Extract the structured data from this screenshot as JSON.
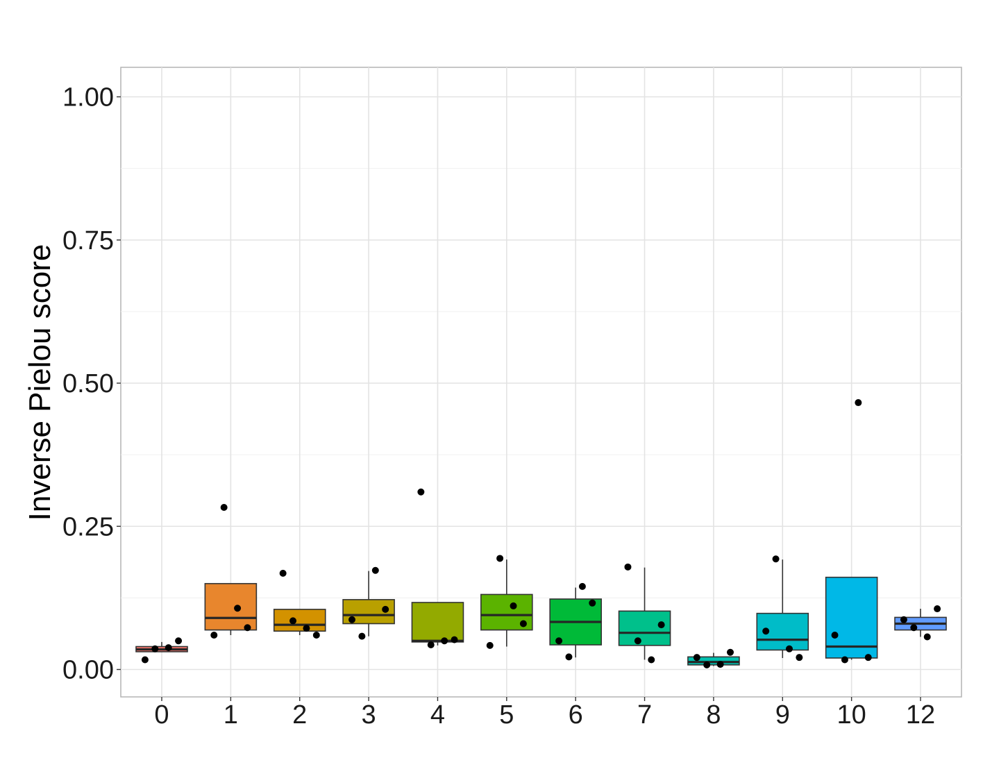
{
  "chart_data": {
    "type": "box",
    "xlabel": "",
    "ylabel": "Inverse Pielou score",
    "ylim": [
      -0.05,
      1.05
    ],
    "yticks": [
      "0.00",
      "0.25",
      "0.50",
      "0.75",
      "1.00"
    ],
    "ytick_values": [
      0,
      0.25,
      0.5,
      0.75,
      1.0
    ],
    "grid": true,
    "categories": [
      "0",
      "1",
      "2",
      "3",
      "4",
      "5",
      "6",
      "7",
      "8",
      "9",
      "10",
      "12"
    ],
    "boxes": [
      {
        "category": "0",
        "color": "#F8766D",
        "q1": 0.031,
        "median": 0.035,
        "q3": 0.04,
        "whisker_low": 0.031,
        "whisker_high": 0.048,
        "points": [
          0.017,
          0.036,
          0.038,
          0.05
        ]
      },
      {
        "category": "1",
        "color": "#E8862D",
        "q1": 0.069,
        "median": 0.09,
        "q3": 0.15,
        "whisker_low": 0.06,
        "whisker_high": 0.15,
        "points": [
          0.283,
          0.107,
          0.073,
          0.06
        ]
      },
      {
        "category": "2",
        "color": "#D39200",
        "q1": 0.067,
        "median": 0.078,
        "q3": 0.105,
        "whisker_low": 0.06,
        "whisker_high": 0.105,
        "points": [
          0.072,
          0.06,
          0.168,
          0.085
        ]
      },
      {
        "category": "3",
        "color": "#B9A000",
        "q1": 0.08,
        "median": 0.095,
        "q3": 0.122,
        "whisker_low": 0.058,
        "whisker_high": 0.172,
        "points": [
          0.105,
          0.087,
          0.058,
          0.173
        ]
      },
      {
        "category": "4",
        "color": "#93AA00",
        "q1": 0.048,
        "median": 0.05,
        "q3": 0.117,
        "whisker_low": 0.042,
        "whisker_high": 0.117,
        "points": [
          0.31,
          0.043,
          0.05,
          0.052
        ]
      },
      {
        "category": "5",
        "color": "#5BB300",
        "q1": 0.069,
        "median": 0.095,
        "q3": 0.131,
        "whisker_low": 0.04,
        "whisker_high": 0.192,
        "points": [
          0.194,
          0.111,
          0.08,
          0.042
        ]
      },
      {
        "category": "6",
        "color": "#00BA38",
        "q1": 0.043,
        "median": 0.083,
        "q3": 0.123,
        "whisker_low": 0.021,
        "whisker_high": 0.143,
        "points": [
          0.145,
          0.116,
          0.05,
          0.022
        ]
      },
      {
        "category": "7",
        "color": "#00C08B",
        "q1": 0.042,
        "median": 0.064,
        "q3": 0.102,
        "whisker_low": 0.017,
        "whisker_high": 0.178,
        "points": [
          0.078,
          0.179,
          0.05,
          0.017
        ]
      },
      {
        "category": "8",
        "color": "#00BFAE",
        "q1": 0.008,
        "median": 0.013,
        "q3": 0.022,
        "whisker_low": 0.006,
        "whisker_high": 0.029,
        "points": [
          0.021,
          0.008,
          0.009,
          0.03
        ]
      },
      {
        "category": "9",
        "color": "#00BCC8",
        "q1": 0.034,
        "median": 0.052,
        "q3": 0.098,
        "whisker_low": 0.02,
        "whisker_high": 0.192,
        "points": [
          0.193,
          0.036,
          0.021,
          0.067
        ]
      },
      {
        "category": "10",
        "color": "#00B8E7",
        "q1": 0.02,
        "median": 0.04,
        "q3": 0.161,
        "whisker_low": 0.017,
        "whisker_high": 0.161,
        "points": [
          0.466,
          0.021,
          0.06,
          0.017
        ]
      },
      {
        "category": "12",
        "color": "#619CFF",
        "q1": 0.069,
        "median": 0.08,
        "q3": 0.091,
        "whisker_low": 0.057,
        "whisker_high": 0.106,
        "points": [
          0.106,
          0.087,
          0.073,
          0.057
        ]
      }
    ]
  }
}
